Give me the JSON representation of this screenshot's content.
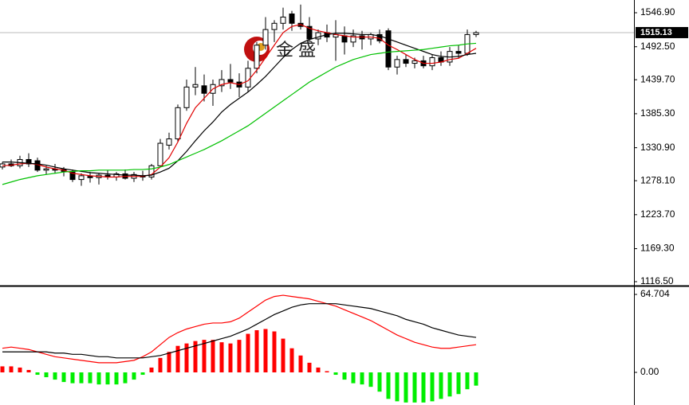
{
  "chart_data": [
    {
      "type": "candlestick",
      "ylim": [
        1111.4,
        1567.3
      ],
      "yticks": [
        {
          "value": 1546.9,
          "label": "1546.90"
        },
        {
          "value": 1492.5,
          "label": "1492.50"
        },
        {
          "value": 1439.7,
          "label": "1439.70"
        },
        {
          "value": 1385.3,
          "label": "1385.30"
        },
        {
          "value": 1330.9,
          "label": "1330.90"
        },
        {
          "value": 1278.1,
          "label": "1278.10"
        },
        {
          "value": 1223.7,
          "label": "1223.70"
        },
        {
          "value": 1169.3,
          "label": "1169.30"
        },
        {
          "value": 1116.5,
          "label": "1116.50"
        }
      ],
      "current_price": 1515.13,
      "watermark": "金 盛",
      "open": [
        1300,
        1305,
        1302,
        1312,
        1310,
        1295,
        1297,
        1296,
        1292,
        1280,
        1285,
        1283,
        1287,
        1284,
        1289,
        1282,
        1286,
        1284,
        1302,
        1335,
        1345,
        1395,
        1428,
        1430,
        1418,
        1430,
        1440,
        1436,
        1428,
        1458,
        1495,
        1520,
        1530,
        1545,
        1530,
        1525,
        1505,
        1515,
        1508,
        1510,
        1500,
        1510,
        1505,
        1512,
        1518,
        1460,
        1472,
        1466,
        1470,
        1462,
        1475,
        1468,
        1485,
        1482,
        1512
      ],
      "high": [
        1308,
        1312,
        1318,
        1322,
        1315,
        1302,
        1305,
        1300,
        1296,
        1290,
        1292,
        1290,
        1295,
        1292,
        1296,
        1292,
        1294,
        1305,
        1345,
        1355,
        1400,
        1440,
        1460,
        1448,
        1440,
        1455,
        1465,
        1450,
        1470,
        1500,
        1540,
        1535,
        1555,
        1550,
        1560,
        1540,
        1520,
        1528,
        1535,
        1525,
        1520,
        1518,
        1515,
        1520,
        1522,
        1478,
        1480,
        1475,
        1478,
        1480,
        1485,
        1492,
        1495,
        1520,
        1518
      ],
      "low": [
        1296,
        1300,
        1298,
        1300,
        1292,
        1288,
        1290,
        1285,
        1276,
        1270,
        1275,
        1272,
        1280,
        1278,
        1280,
        1276,
        1278,
        1280,
        1300,
        1328,
        1340,
        1390,
        1415,
        1405,
        1398,
        1420,
        1425,
        1412,
        1420,
        1450,
        1488,
        1500,
        1520,
        1518,
        1520,
        1500,
        1495,
        1500,
        1470,
        1480,
        1492,
        1488,
        1495,
        1498,
        1455,
        1448,
        1460,
        1458,
        1458,
        1455,
        1462,
        1462,
        1475,
        1478,
        1508
      ],
      "close": [
        1305,
        1302,
        1312,
        1305,
        1295,
        1297,
        1295,
        1293,
        1280,
        1286,
        1283,
        1287,
        1284,
        1289,
        1282,
        1288,
        1284,
        1302,
        1338,
        1345,
        1395,
        1428,
        1432,
        1418,
        1432,
        1440,
        1436,
        1428,
        1458,
        1495,
        1520,
        1530,
        1540,
        1530,
        1525,
        1505,
        1515,
        1508,
        1512,
        1500,
        1510,
        1505,
        1512,
        1502,
        1460,
        1472,
        1466,
        1470,
        1462,
        1475,
        1468,
        1485,
        1482,
        1512,
        1515
      ],
      "series": [
        {
          "color": "#e00000",
          "values": [
            1302,
            1303,
            1305,
            1306,
            1304,
            1300,
            1297,
            1295,
            1290,
            1288,
            1286,
            1285,
            1284,
            1284,
            1285,
            1285,
            1285,
            1288,
            1300,
            1315,
            1340,
            1370,
            1395,
            1410,
            1425,
            1432,
            1435,
            1432,
            1438,
            1455,
            1475,
            1495,
            1515,
            1525,
            1528,
            1522,
            1518,
            1515,
            1512,
            1510,
            1508,
            1508,
            1508,
            1506,
            1495,
            1488,
            1480,
            1472,
            1466,
            1466,
            1468,
            1472,
            1474,
            1482,
            1490
          ]
        },
        {
          "color": "#000000",
          "values": [
            1308,
            1308,
            1307,
            1306,
            1305,
            1303,
            1300,
            1297,
            1295,
            1293,
            1291,
            1290,
            1289,
            1288,
            1287,
            1287,
            1286,
            1287,
            1292,
            1298,
            1310,
            1325,
            1342,
            1358,
            1372,
            1388,
            1400,
            1410,
            1420,
            1432,
            1445,
            1460,
            1475,
            1488,
            1498,
            1504,
            1508,
            1512,
            1514,
            1514,
            1513,
            1512,
            1512,
            1510,
            1505,
            1500,
            1495,
            1490,
            1485,
            1480,
            1477,
            1476,
            1477,
            1480,
            1482
          ]
        },
        {
          "color": "#00c000",
          "values": [
            1272,
            1276,
            1280,
            1283,
            1286,
            1288,
            1290,
            1292,
            1293,
            1294,
            1294,
            1295,
            1295,
            1295,
            1295,
            1296,
            1296,
            1297,
            1300,
            1304,
            1310,
            1316,
            1322,
            1328,
            1335,
            1342,
            1350,
            1358,
            1366,
            1376,
            1386,
            1396,
            1406,
            1416,
            1426,
            1436,
            1444,
            1452,
            1460,
            1466,
            1472,
            1476,
            1480,
            1482,
            1484,
            1485,
            1486,
            1487,
            1488,
            1490,
            1492,
            1494,
            1495,
            1497,
            1498
          ]
        }
      ]
    },
    {
      "type": "bar",
      "ylim": [
        -25.75,
        70
      ],
      "yticks": [
        64.704,
        {
          "value": 0,
          "label": "0.00"
        }
      ],
      "positive_color": "#ff0000",
      "negative_color": "#00ee00",
      "values": [
        5,
        5,
        4,
        2,
        -2,
        -4,
        -6,
        -8,
        -9,
        -9,
        -9,
        -10,
        -10,
        -10,
        -9,
        -6,
        -2,
        4,
        12,
        17,
        22,
        24,
        26,
        27,
        27,
        25,
        24,
        27,
        32,
        35,
        36,
        34,
        28,
        20,
        14,
        8,
        4,
        1,
        -2,
        -6,
        -9,
        -10,
        -12,
        -16,
        -22,
        -24,
        -25,
        -25,
        -25,
        -24,
        -22,
        -20,
        -18,
        -14,
        -11
      ],
      "series": [
        {
          "color": "#ff0000",
          "values": [
            20,
            21,
            20,
            19,
            17,
            15,
            13,
            12,
            11,
            10,
            9,
            8,
            8,
            8,
            9,
            10,
            13,
            17,
            23,
            29,
            33,
            36,
            38,
            40,
            41,
            41,
            42,
            45,
            50,
            55,
            60,
            63,
            64,
            63,
            62,
            61,
            59,
            57,
            55,
            52,
            49,
            46,
            43,
            39,
            35,
            31,
            28,
            25,
            23,
            21,
            20,
            20,
            21,
            22,
            23
          ]
        },
        {
          "color": "#000000",
          "values": [
            17,
            17,
            17,
            17,
            17,
            17,
            16,
            16,
            15,
            15,
            14,
            13,
            13,
            12,
            12,
            12,
            12,
            13,
            14,
            16,
            18,
            20,
            22,
            24,
            26,
            28,
            30,
            33,
            36,
            40,
            44,
            48,
            51,
            54,
            56,
            57,
            57,
            57,
            57,
            56,
            55,
            54,
            53,
            51,
            49,
            47,
            44,
            42,
            40,
            37,
            35,
            33,
            31,
            30,
            29
          ]
        }
      ]
    }
  ]
}
